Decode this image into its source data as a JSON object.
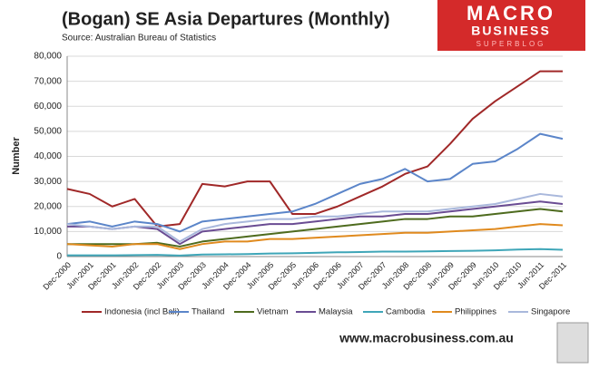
{
  "chart_data": {
    "type": "line",
    "title": "(Bogan) SE Asia Departures (Monthly)",
    "subtitle": "Source: Australian Bureau of Statistics",
    "y_label": "Number",
    "logo": [
      "MACRO",
      "BUSINESS",
      "SUPERBLOG"
    ],
    "footer": "www.macrobusiness.com.au",
    "categories": [
      "Dec-2000",
      "Jun-2001",
      "Dec-2001",
      "Jun-2002",
      "Dec-2002",
      "Jun-2003",
      "Dec-2003",
      "Jun-2004",
      "Dec-2004",
      "Jun-2005",
      "Dec-2005",
      "Jun-2006",
      "Dec-2006",
      "Jun-2007",
      "Dec-2007",
      "Jun-2008",
      "Dec-2008",
      "Jun-2009",
      "Dec-2009",
      "Jun-2010",
      "Dec-2010",
      "Jun-2011",
      "Dec-2011"
    ],
    "ylim": [
      0,
      80000
    ],
    "yticks": [
      0,
      {
        "value": 10000,
        "label": "10,000"
      },
      {
        "value": 20000,
        "label": "20,000"
      },
      {
        "value": 30000,
        "label": "30,000"
      },
      {
        "value": 40000,
        "label": "40,000"
      },
      {
        "value": 50000,
        "label": "50,000"
      },
      {
        "value": 60000,
        "label": "60,000"
      },
      {
        "value": 70000,
        "label": "70,000"
      },
      {
        "value": 80000,
        "label": "80,000"
      }
    ],
    "grid": true,
    "legend": "bottom",
    "series": [
      {
        "name": "Indonesia (incl Bali)",
        "color": "#a02828",
        "values": [
          27000,
          25000,
          20000,
          23000,
          12000,
          13000,
          29000,
          28000,
          30000,
          30000,
          17000,
          17000,
          20000,
          24000,
          28000,
          33000,
          36000,
          45000,
          55000,
          62000,
          68000,
          74000,
          74000
        ]
      },
      {
        "name": "Thailand",
        "color": "#5b85c9",
        "values": [
          13000,
          14000,
          12000,
          14000,
          13000,
          10000,
          14000,
          15000,
          16000,
          17000,
          18000,
          21000,
          25000,
          29000,
          31000,
          35000,
          30000,
          31000,
          37000,
          38000,
          43000,
          49000,
          47000
        ]
      },
      {
        "name": "Vietnam",
        "color": "#4e6b1e",
        "values": [
          5000,
          5000,
          5000,
          5000,
          5500,
          4000,
          6000,
          7000,
          8000,
          9000,
          10000,
          11000,
          12000,
          13000,
          14000,
          15000,
          15000,
          16000,
          16000,
          17000,
          18000,
          19000,
          18000
        ]
      },
      {
        "name": "Malaysia",
        "color": "#6a4c93",
        "values": [
          12000,
          12000,
          11000,
          12000,
          11000,
          5000,
          10000,
          11000,
          12000,
          13000,
          13000,
          14000,
          15000,
          16000,
          16000,
          17000,
          17000,
          18000,
          19000,
          20000,
          21000,
          22000,
          21000
        ]
      },
      {
        "name": "Cambodia",
        "color": "#3fa6b8",
        "values": [
          500,
          500,
          500,
          600,
          700,
          400,
          800,
          900,
          1000,
          1200,
          1300,
          1500,
          1700,
          1800,
          2000,
          2000,
          2100,
          2200,
          2300,
          2500,
          2800,
          3000,
          2700
        ]
      },
      {
        "name": "Philippines",
        "color": "#e08a1e",
        "values": [
          5000,
          4500,
          4000,
          5000,
          5000,
          3000,
          5000,
          6000,
          6000,
          7000,
          7000,
          7500,
          8000,
          8500,
          9000,
          9500,
          9500,
          10000,
          10500,
          11000,
          12000,
          13000,
          12500
        ]
      },
      {
        "name": "Singapore",
        "color": "#a9b8dc",
        "values": [
          13000,
          12000,
          11000,
          12000,
          12000,
          6000,
          11000,
          13000,
          14000,
          15000,
          15000,
          16000,
          16000,
          17000,
          18000,
          18000,
          18000,
          19000,
          20000,
          21000,
          23000,
          25000,
          24000
        ]
      }
    ]
  }
}
